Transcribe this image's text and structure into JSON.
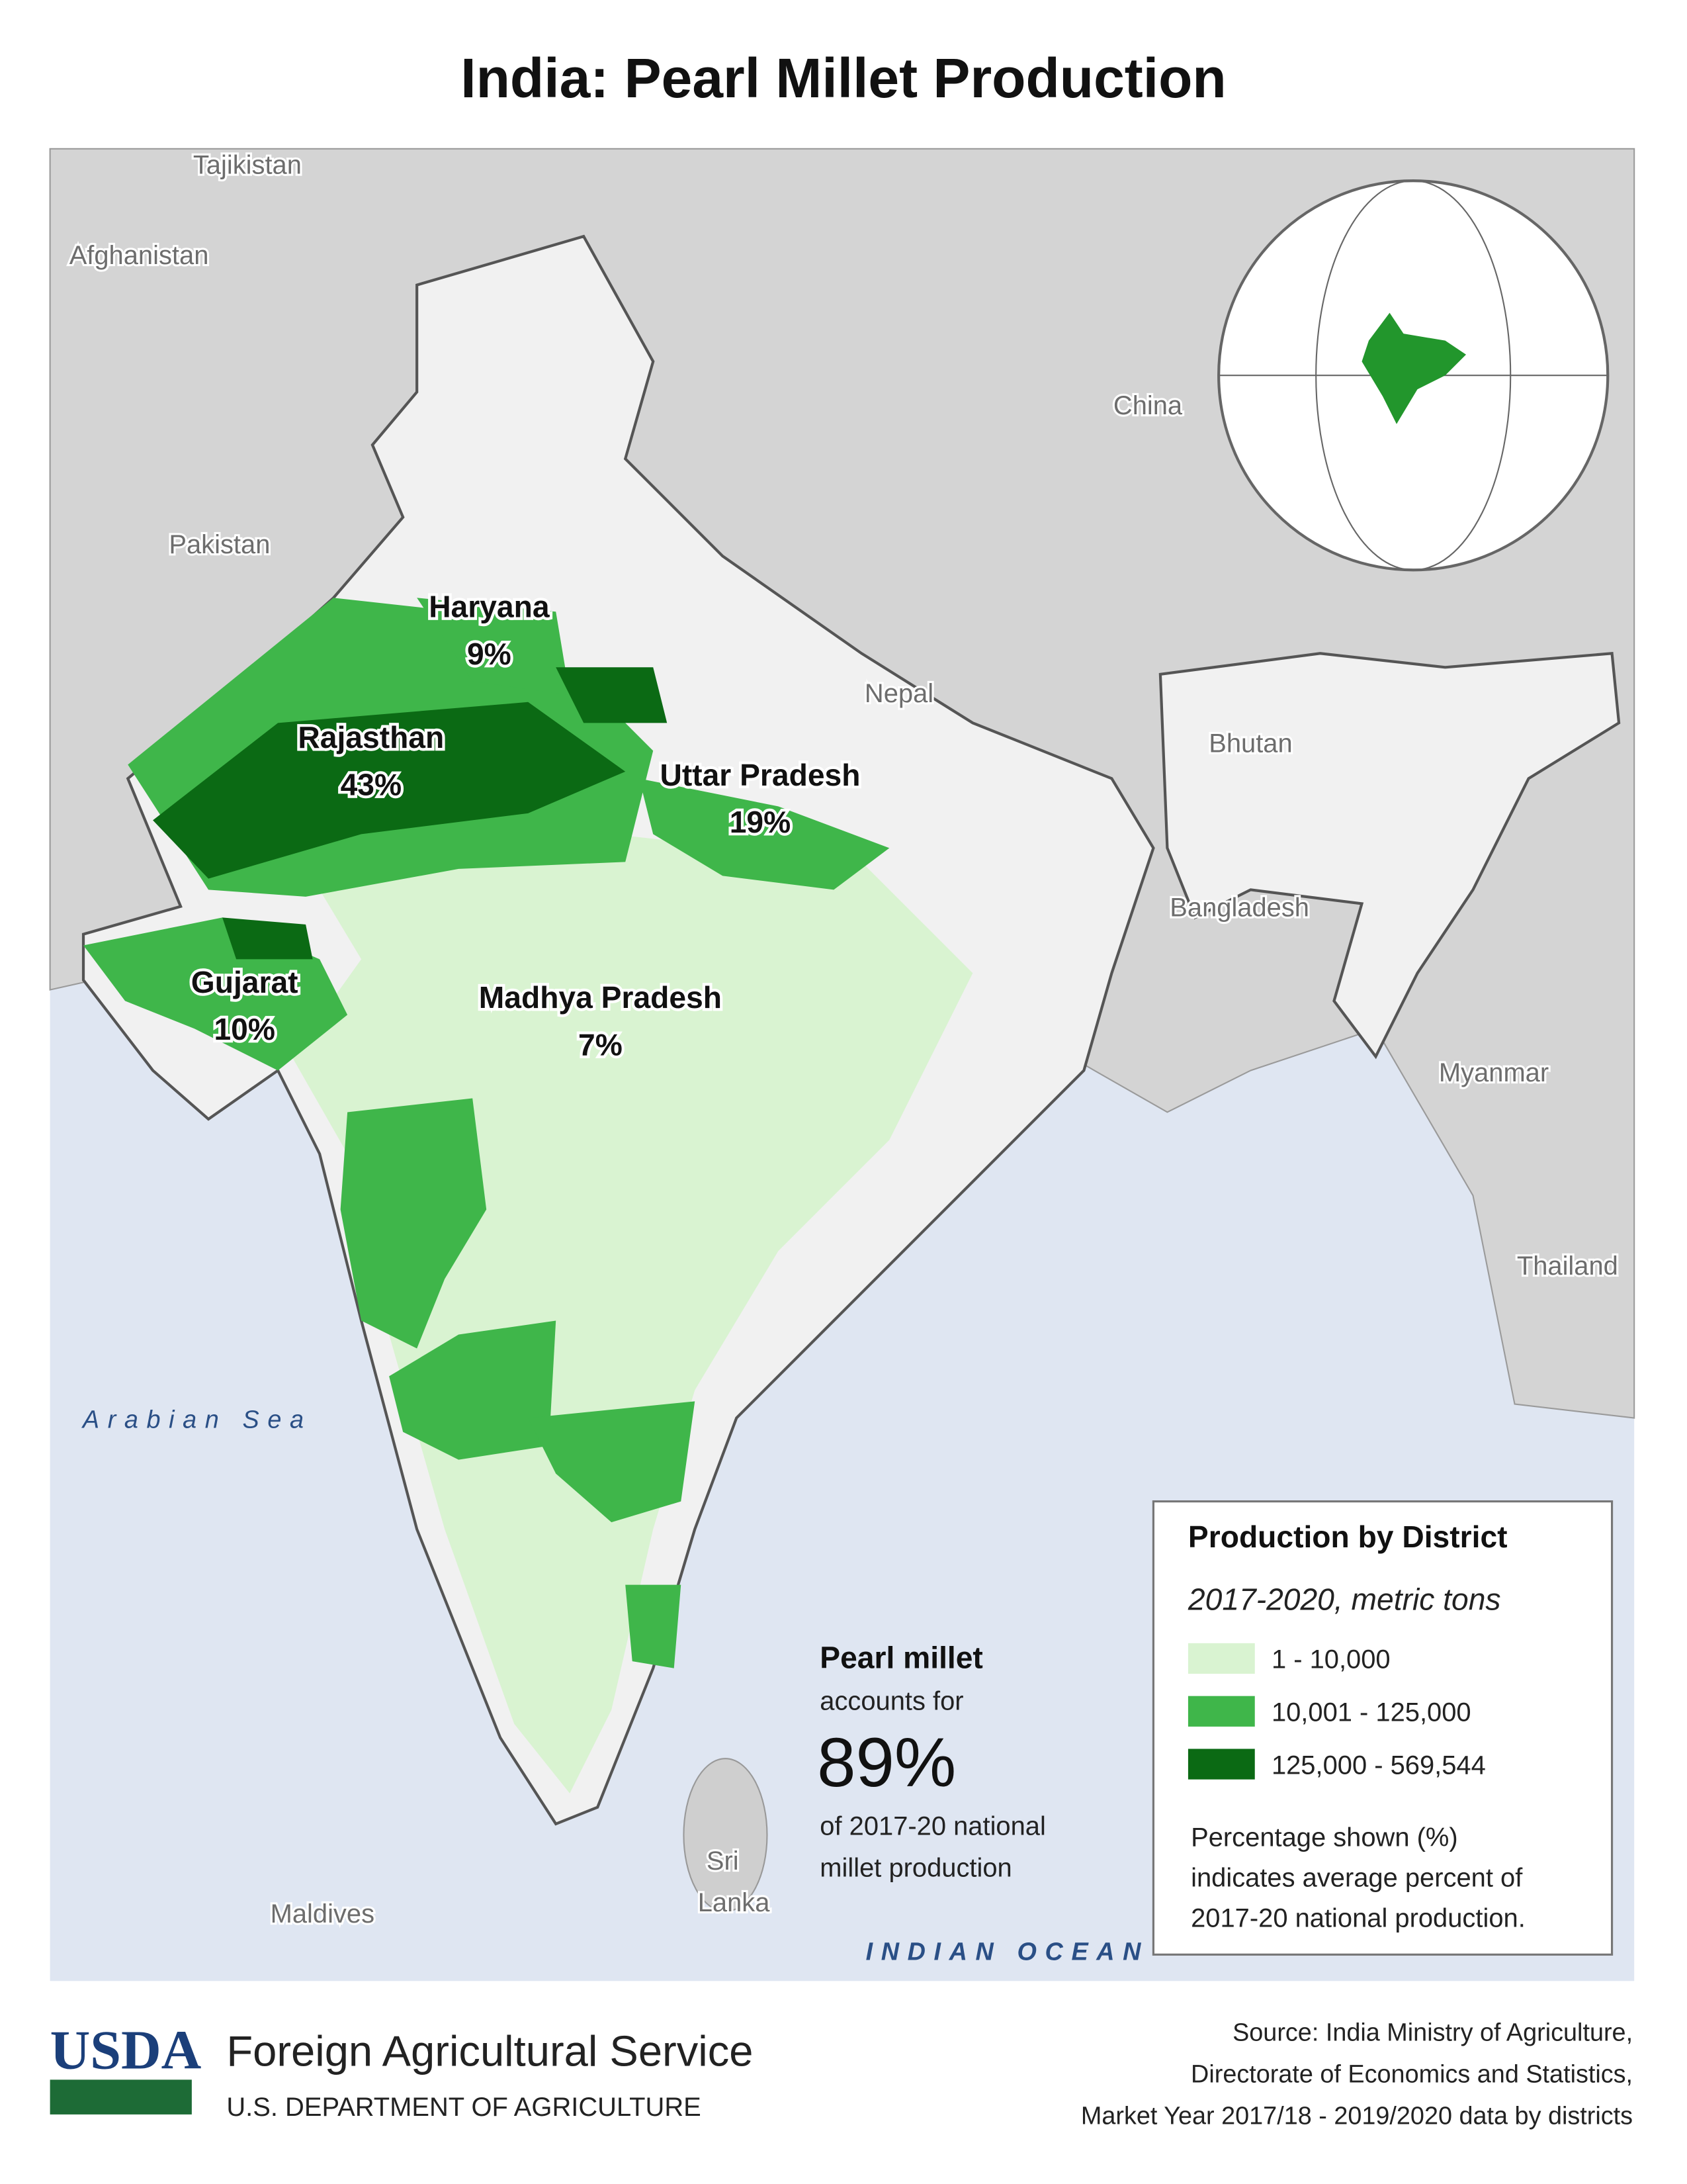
{
  "title": "India: Pearl Millet Production",
  "map": {
    "countries": [
      {
        "name": "Tajikistan"
      },
      {
        "name": "Afghanistan"
      },
      {
        "name": "Pakistan"
      },
      {
        "name": "China"
      },
      {
        "name": "Nepal"
      },
      {
        "name": "Bhutan"
      },
      {
        "name": "Bangladesh"
      },
      {
        "name": "Myanmar"
      },
      {
        "name": "Thailand"
      },
      {
        "name": "Maldives"
      }
    ],
    "sri_lanka": [
      "Sri",
      "Lanka"
    ],
    "seas": [
      "Arabian Sea",
      "INDIAN OCEAN"
    ],
    "states": [
      {
        "name": "Haryana",
        "share": "9%"
      },
      {
        "name": "Rajasthan",
        "share": "43%"
      },
      {
        "name": "Uttar Pradesh",
        "share": "19%"
      },
      {
        "name": "Gujarat",
        "share": "10%"
      },
      {
        "name": "Madhya Pradesh",
        "share": "7%"
      }
    ]
  },
  "legend": {
    "title": "Production by District",
    "subtitle": "2017-2020, metric tons",
    "classes": [
      {
        "label": "1 - 10,000",
        "color": "#d9f3d1"
      },
      {
        "label": "10,001 - 125,000",
        "color": "#3fb64a"
      },
      {
        "label": "125,000 - 569,544",
        "color": "#0b6a14"
      }
    ],
    "note": [
      "Percentage shown (%)",
      "indicates average percent of",
      "2017-20 national production."
    ]
  },
  "callout": {
    "heading": "Pearl millet",
    "lead": "accounts for",
    "share": "89%",
    "tail": [
      "of 2017-20 national",
      "millet production"
    ]
  },
  "footer": {
    "logo": "USDA",
    "agency": "Foreign Agricultural Service",
    "department": "U.S. DEPARTMENT OF AGRICULTURE",
    "source": [
      "Source: India Ministry of Agriculture,",
      "Directorate of Economics and Statistics,",
      "Market Year 2017/18 - 2019/2020 data by districts"
    ]
  }
}
